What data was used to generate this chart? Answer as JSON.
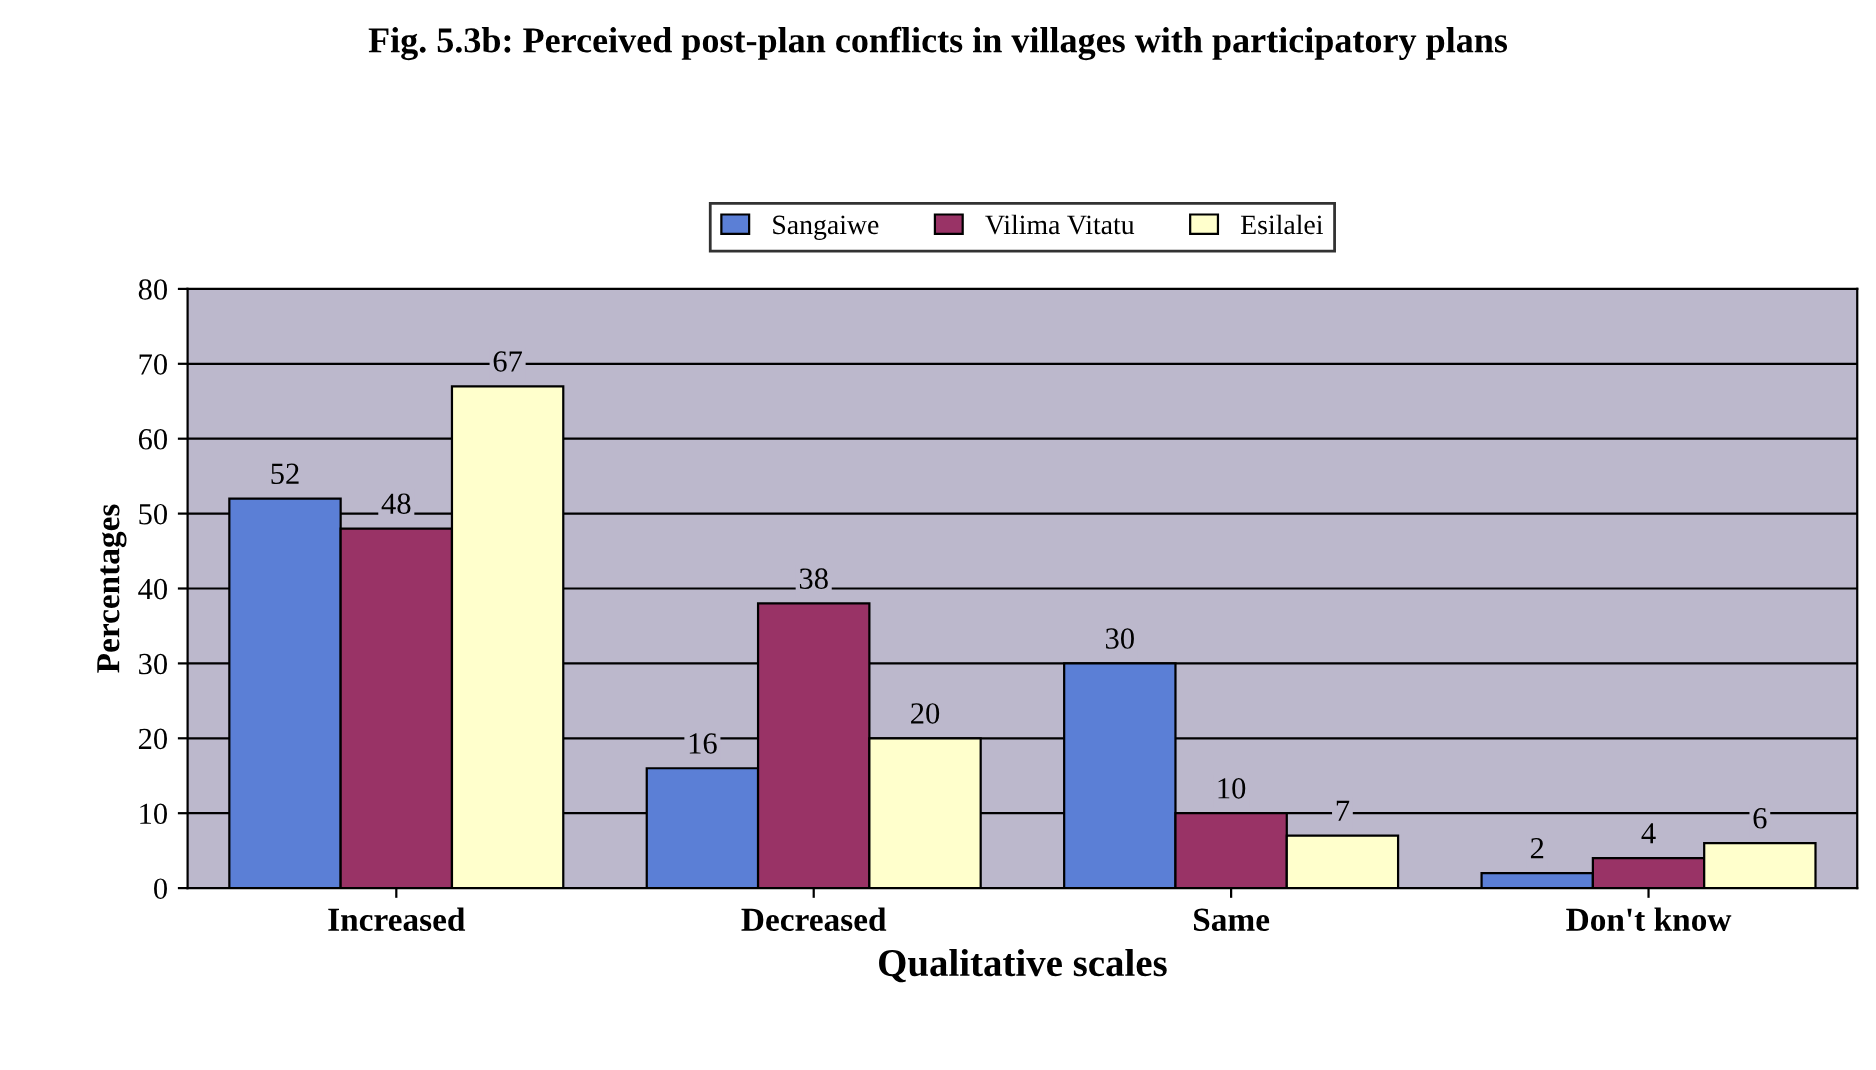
{
  "chart_data": {
    "type": "bar",
    "title": "Fig. 5.3b: Perceived post-plan conflicts in villages with participatory plans",
    "xlabel": "Qualitative scales",
    "ylabel": "Percentages",
    "categories": [
      "Increased",
      "Decreased",
      "Same",
      "Don't know"
    ],
    "series": [
      {
        "name": "Sangaiwe",
        "color": "#5b7fd6",
        "values": [
          52,
          16,
          30,
          2
        ]
      },
      {
        "name": "Vilima Vitatu",
        "color": "#993366",
        "values": [
          48,
          38,
          10,
          4
        ]
      },
      {
        "name": "Esilalei",
        "color": "#ffffcc",
        "values": [
          67,
          20,
          7,
          6
        ]
      }
    ],
    "ylim": [
      0,
      80
    ],
    "yticks": [
      0,
      10,
      20,
      30,
      40,
      50,
      60,
      70,
      80
    ],
    "grid": "y",
    "legend": "top",
    "data_labels": true
  }
}
